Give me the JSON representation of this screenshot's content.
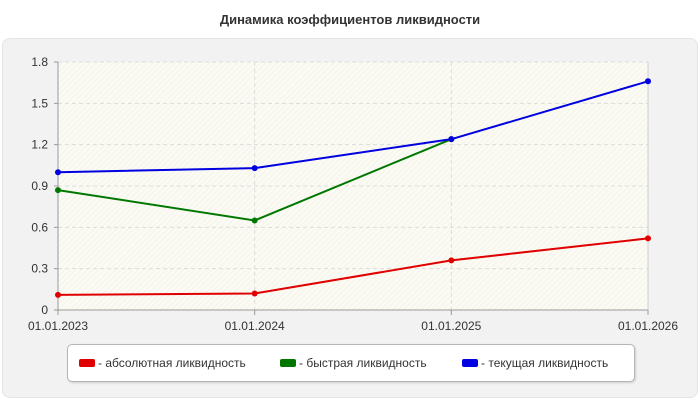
{
  "chart_data": {
    "type": "line",
    "title": "Динамика коэффициентов ликвидности",
    "x": [
      "01.01.2023",
      "01.01.2024",
      "01.01.2025",
      "01.01.2026"
    ],
    "y_ticks": [
      "0",
      "0.3",
      "0.6",
      "0.9",
      "1.2",
      "1.5",
      "1.8"
    ],
    "ylim": [
      0,
      1.8
    ],
    "grid": true,
    "legend_position": "bottom",
    "series": [
      {
        "name": "- абсолютная ликвидность",
        "color": "#e00000",
        "values": [
          0.11,
          0.12,
          0.36,
          0.52
        ]
      },
      {
        "name": "- быстрая ликвидность",
        "color": "#007800",
        "values": [
          0.87,
          0.65,
          1.24,
          null
        ]
      },
      {
        "name": "- текущая ликвидность",
        "color": "#0000e0",
        "values": [
          1.0,
          1.03,
          1.24,
          1.66
        ]
      }
    ]
  }
}
